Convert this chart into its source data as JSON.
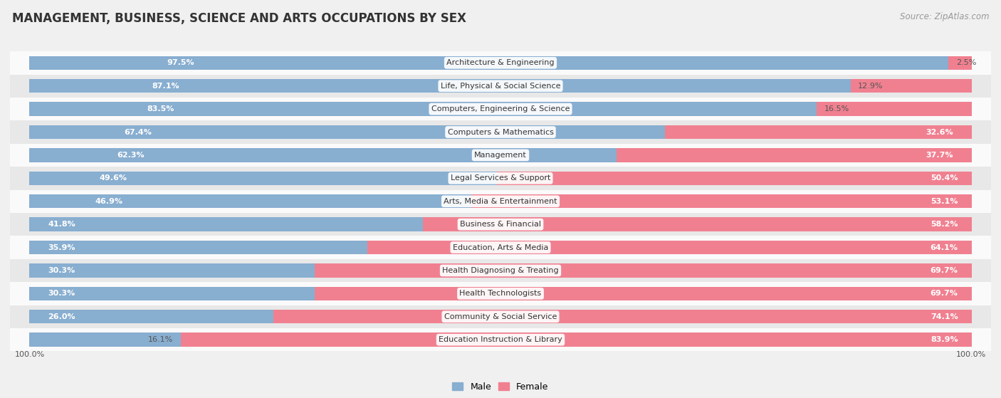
{
  "title": "MANAGEMENT, BUSINESS, SCIENCE AND ARTS OCCUPATIONS BY SEX",
  "source": "Source: ZipAtlas.com",
  "categories": [
    "Architecture & Engineering",
    "Life, Physical & Social Science",
    "Computers, Engineering & Science",
    "Computers & Mathematics",
    "Management",
    "Legal Services & Support",
    "Arts, Media & Entertainment",
    "Business & Financial",
    "Education, Arts & Media",
    "Health Diagnosing & Treating",
    "Health Technologists",
    "Community & Social Service",
    "Education Instruction & Library"
  ],
  "male_pct": [
    97.5,
    87.1,
    83.5,
    67.4,
    62.3,
    49.6,
    46.9,
    41.8,
    35.9,
    30.3,
    30.3,
    26.0,
    16.1
  ],
  "female_pct": [
    2.5,
    12.9,
    16.5,
    32.6,
    37.7,
    50.4,
    53.1,
    58.2,
    64.1,
    69.7,
    69.7,
    74.1,
    83.9
  ],
  "male_color": "#88aed0",
  "female_color": "#f08090",
  "bg_color": "#f0f0f0",
  "row_bg_even": "#e8e8e8",
  "row_bg_odd": "#fafafa",
  "title_fontsize": 12,
  "source_fontsize": 8.5,
  "label_fontsize": 8,
  "value_fontsize": 8,
  "legend_fontsize": 9,
  "axis_label_fontsize": 8
}
